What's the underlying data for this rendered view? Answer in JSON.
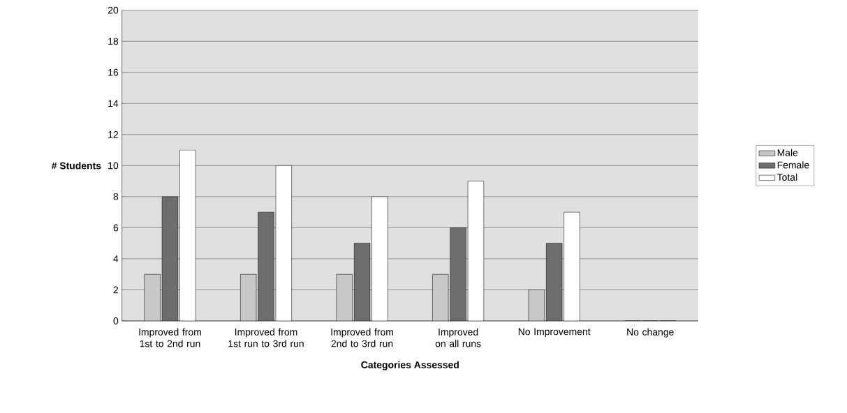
{
  "chart_data": {
    "type": "bar",
    "xlabel": "Categories Assessed",
    "ylabel": "# Students",
    "categories": [
      "Improved from 1st to 2nd run",
      "Improved from 1st run to 3rd run",
      "Improved from 2nd to 3rd run",
      "Improved on all runs",
      "No Improvement",
      "No change"
    ],
    "series": [
      {
        "name": "Male",
        "color": "#c8c8c8",
        "values": [
          3,
          3,
          3,
          3,
          2,
          0
        ]
      },
      {
        "name": "Female",
        "color": "#6e6e6e",
        "values": [
          8,
          7,
          5,
          6,
          5,
          0
        ]
      },
      {
        "name": "Total",
        "color": "#ffffff",
        "values": [
          11,
          10,
          8,
          9,
          7,
          0
        ]
      }
    ],
    "ylim": [
      0,
      20
    ],
    "yticks": [
      0,
      2,
      4,
      6,
      8,
      10,
      12,
      14,
      16,
      18,
      20
    ],
    "grid": "y",
    "legend": "right"
  }
}
